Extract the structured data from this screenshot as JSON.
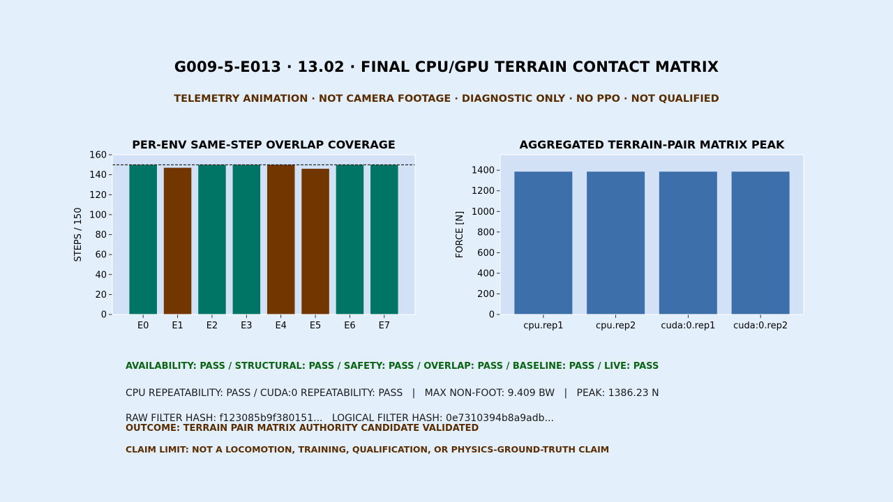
{
  "title": "G009-5-E013 · 13.02 · FINAL CPU/GPU TERRAIN CONTACT MATRIX",
  "subtitle": "TELEMETRY ANIMATION · NOT CAMERA FOOTAGE · DIAGNOSTIC ONLY · NO PPO · NOT QUALIFIED",
  "colors": {
    "background": "#e3effb",
    "axes_background": "#d2e1f6",
    "pass_bar": "#007565",
    "fail_bar": "#723600",
    "force_bar": "#3d70ab",
    "status_green": "#0a6414",
    "warning_brown": "#5a2d00"
  },
  "chart_data": [
    {
      "type": "bar",
      "title": "PER-ENV SAME-STEP OVERLAP COVERAGE",
      "xlabel": "",
      "ylabel": "STEPS / 150",
      "categories": [
        "E0",
        "E1",
        "E2",
        "E3",
        "E4",
        "E5",
        "E6",
        "E7"
      ],
      "values": [
        150,
        147,
        150,
        150,
        150,
        146,
        150,
        150
      ],
      "bar_status": [
        "pass",
        "fail",
        "pass",
        "pass",
        "fail",
        "fail",
        "pass",
        "pass"
      ],
      "reference_line": 150,
      "ylim": [
        0,
        160
      ],
      "yticks": [
        0,
        20,
        40,
        60,
        80,
        100,
        120,
        140,
        160
      ],
      "grid": false
    },
    {
      "type": "bar",
      "title": "AGGREGATED TERRAIN-PAIR MATRIX PEAK",
      "xlabel": "",
      "ylabel": "FORCE [N]",
      "categories": [
        "cpu.rep1",
        "cpu.rep2",
        "cuda:0.rep1",
        "cuda:0.rep2"
      ],
      "values": [
        1386.23,
        1386.23,
        1386.23,
        1386.23
      ],
      "ylim": [
        0,
        1550
      ],
      "yticks": [
        0,
        200,
        400,
        600,
        800,
        1000,
        1200,
        1400
      ],
      "grid": false
    }
  ],
  "footer": {
    "status_line": "AVAILABILITY: PASS / STRUCTURAL: PASS / SAFETY: PASS / OVERLAP: PASS / BASELINE: PASS / LIVE: PASS",
    "metrics_line": "CPU REPEATABILITY: PASS / CUDA:0 REPEATABILITY: PASS   |   MAX NON-FOOT: 9.409 BW   |   PEAK: 1386.23 N",
    "hash_line": "RAW FILTER HASH: f123085b9f380151...   LOGICAL FILTER HASH: 0e7310394b8a9adb...",
    "outcome_line": "OUTCOME: TERRAIN PAIR MATRIX AUTHORITY CANDIDATE VALIDATED",
    "claim_line": "CLAIM LIMIT: NOT A LOCOMOTION, TRAINING, QUALIFICATION, OR PHYSICS-GROUND-TRUTH CLAIM"
  }
}
